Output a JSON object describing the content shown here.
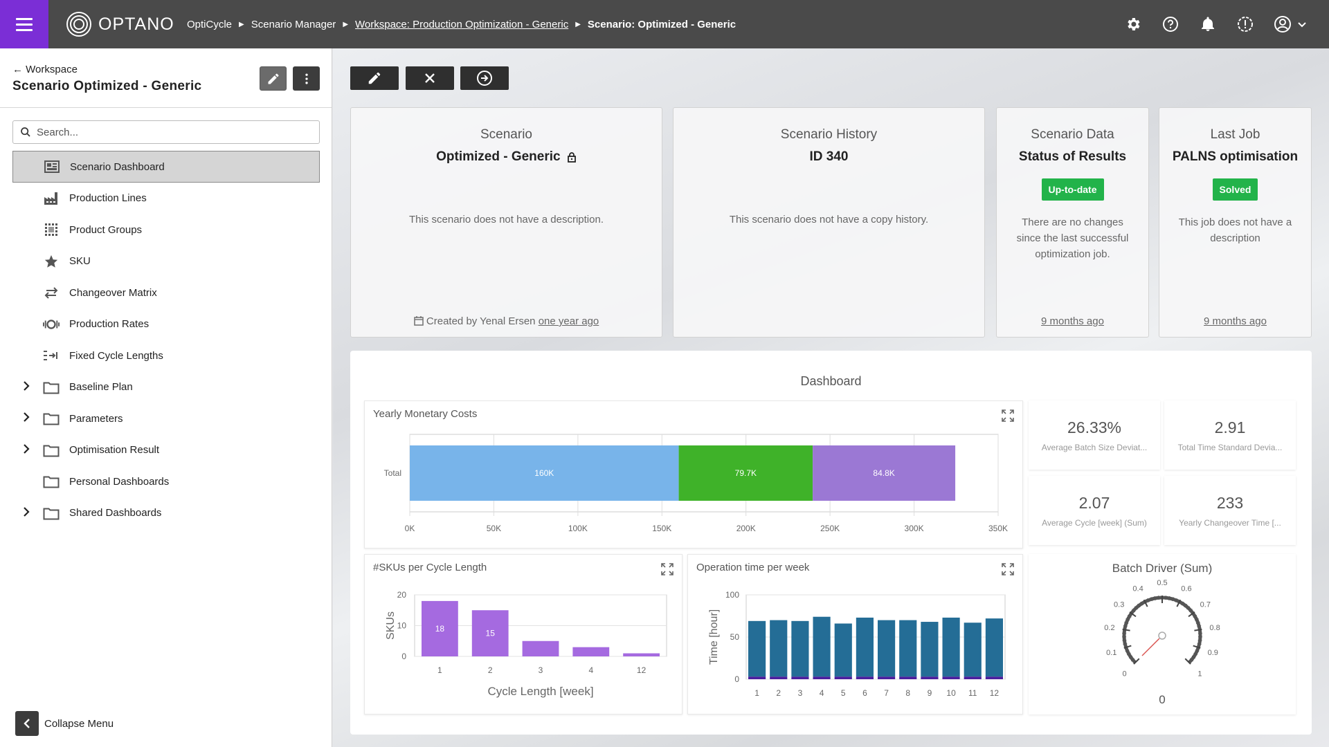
{
  "topbar": {
    "logo": "OPTANO",
    "breadcrumbs": [
      {
        "label": "OptiCycle"
      },
      {
        "label": "Scenario Manager"
      },
      {
        "label": "Workspace: Production Optimization - Generic"
      },
      {
        "label": "Scenario: Optimized - Generic"
      }
    ],
    "icons": [
      "gear-icon",
      "help-icon",
      "bell-icon",
      "alert-icon",
      "account-icon"
    ]
  },
  "sidebar": {
    "back_label": "Workspace",
    "title": "Scenario Optimized - Generic",
    "search_placeholder": "Search...",
    "items": [
      {
        "label": "Scenario Dashboard",
        "icon": "dashboard-icon",
        "expandable": false,
        "active": true
      },
      {
        "label": "Production Lines",
        "icon": "factory-icon",
        "expandable": false
      },
      {
        "label": "Product Groups",
        "icon": "grid-icon",
        "expandable": false
      },
      {
        "label": "SKU",
        "icon": "star-icon",
        "expandable": false
      },
      {
        "label": "Changeover Matrix",
        "icon": "swap-icon",
        "expandable": false
      },
      {
        "label": "Production Rates",
        "icon": "rate-icon",
        "expandable": false
      },
      {
        "label": "Fixed Cycle Lengths",
        "icon": "cycle-length-icon",
        "expandable": false
      },
      {
        "label": "Baseline Plan",
        "icon": "folder-icon",
        "expandable": true
      },
      {
        "label": "Parameters",
        "icon": "folder-icon",
        "expandable": true
      },
      {
        "label": "Optimisation Result",
        "icon": "folder-icon",
        "expandable": true
      },
      {
        "label": "Personal Dashboards",
        "icon": "folder-icon",
        "expandable": false
      },
      {
        "label": "Shared Dashboards",
        "icon": "folder-icon",
        "expandable": true
      }
    ],
    "collapse_label": "Collapse Menu"
  },
  "cards": [
    {
      "label": "Scenario",
      "value": "Optimized - Generic",
      "desc": "This scenario does not have a description.",
      "foot_prefix": "Created by Yenal Ersen ",
      "foot_link": "one year ago"
    },
    {
      "label": "Scenario History",
      "value": "ID 340",
      "desc": "This scenario does not have a copy history."
    },
    {
      "label": "Scenario Data",
      "value": "Status of Results",
      "badge": "Up-to-date",
      "desc_lines": [
        "There are no changes",
        "since the last successful",
        "optimization job."
      ],
      "foot_link": "9 months ago"
    },
    {
      "label": "Last Job",
      "value": "PALNS optimisation",
      "badge": "Solved",
      "desc_lines": [
        "This job does not have a",
        "description"
      ],
      "foot_link": "9 months ago"
    }
  ],
  "dashboard": {
    "title": "Dashboard",
    "kpis": [
      {
        "value": "26.33%",
        "label": "Average Batch Size Deviat..."
      },
      {
        "value": "2.91",
        "label": "Total Time Standard Devia..."
      },
      {
        "value": "2.07",
        "label": "Average Cycle [week] (Sum)"
      },
      {
        "value": "233",
        "label": "Yearly Changeover Time [..."
      }
    ]
  },
  "colors": {
    "accent": "#7b2ed6",
    "topbar": "#4a4a4a",
    "success": "#22b34a",
    "blue": "#78b4ea",
    "green": "#3fb229",
    "purple": "#9b78d4",
    "bar_purple": "#a56ae0",
    "bar_teal": "#246d96"
  },
  "chart_data": [
    {
      "type": "bar",
      "orientation": "horizontal-stacked",
      "title": "Yearly Monetary Costs",
      "categories": [
        "Total"
      ],
      "series": [
        {
          "values": [
            160000
          ],
          "label": "160K",
          "color": "#78b4ea"
        },
        {
          "values": [
            79700
          ],
          "label": "79.7K",
          "color": "#3fb229"
        },
        {
          "values": [
            84800
          ],
          "label": "84.8K",
          "color": "#9b78d4"
        }
      ],
      "xlim": [
        0,
        350000
      ],
      "xticks": [
        "0K",
        "50K",
        "100K",
        "150K",
        "200K",
        "250K",
        "300K",
        "350K"
      ],
      "grid": true
    },
    {
      "type": "bar",
      "title": "#SKUs per Cycle Length",
      "categories": [
        "1",
        "2",
        "3",
        "4",
        "12"
      ],
      "values": [
        18,
        15,
        5,
        3,
        1
      ],
      "data_labels": [
        "18",
        "15",
        "",
        "",
        ""
      ],
      "xlabel": "Cycle Length [week]",
      "ylabel": "SKUs",
      "ylim": [
        0,
        20
      ],
      "yticks": [
        "0",
        "10",
        "20"
      ]
    },
    {
      "type": "bar",
      "title": "Operation time per week",
      "categories": [
        "1",
        "2",
        "3",
        "4",
        "5",
        "6",
        "7",
        "8",
        "9",
        "10",
        "11",
        "12"
      ],
      "series": [
        {
          "values": [
            66,
            67,
            66,
            71,
            63,
            70,
            67,
            67,
            65,
            70,
            64,
            69
          ],
          "color": "#246d96"
        },
        {
          "values": [
            3,
            3,
            3,
            3,
            3,
            3,
            3,
            3,
            3,
            3,
            3,
            3
          ],
          "color": "#4a1e9e"
        }
      ],
      "xlabel": "",
      "ylabel": "Time [hour]",
      "ylim": [
        0,
        100
      ],
      "yticks": [
        "0",
        "50",
        "100"
      ]
    },
    {
      "type": "gauge",
      "title": "Batch Driver (Sum)",
      "value": 0,
      "value_label": "0",
      "min": 0,
      "max": 1,
      "ticks": [
        "0",
        "0.1",
        "0.2",
        "0.3",
        "0.4",
        "0.5",
        "0.6",
        "0.7",
        "0.8",
        "0.9",
        "1"
      ]
    }
  ]
}
